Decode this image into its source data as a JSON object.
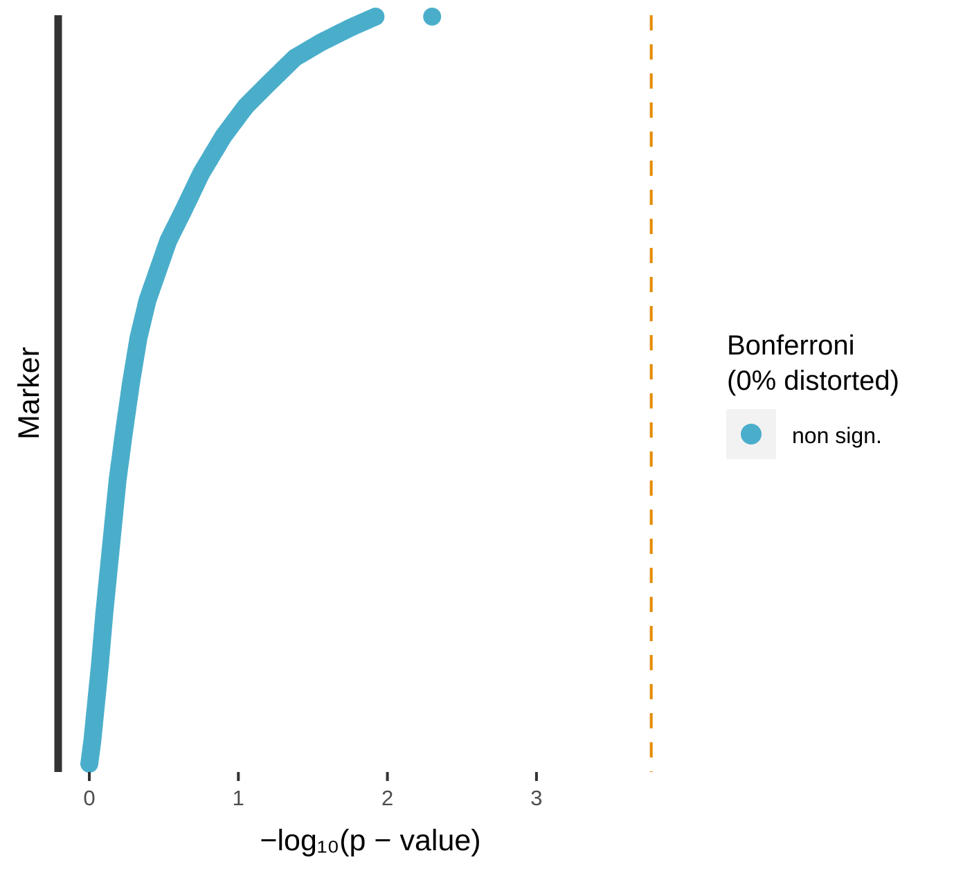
{
  "chart_data": {
    "type": "scatter",
    "orientation": "horizontal",
    "xlabel": "−log₁₀(p − value)",
    "ylabel": "Marker",
    "xlim": [
      -0.05,
      3.82
    ],
    "x_ticks": [
      "0",
      "1",
      "2",
      "3"
    ],
    "grid": false,
    "threshold": {
      "x": 3.77,
      "color": "#e68a00",
      "style": "dashed"
    },
    "legend": {
      "position": "right",
      "title_line1": "Bonferroni",
      "title_line2": "(0% distorted)",
      "items": [
        {
          "label": "non sign.",
          "color": "#4aaecb"
        }
      ]
    },
    "colors": {
      "point": "#4aaecb",
      "axis": "#333333",
      "threshold": "#e68a00"
    },
    "curve_points": [
      [
        0.0,
        0.0
      ],
      [
        0.02,
        0.03
      ],
      [
        0.04,
        0.07
      ],
      [
        0.07,
        0.13
      ],
      [
        0.1,
        0.2
      ],
      [
        0.13,
        0.26
      ],
      [
        0.16,
        0.32
      ],
      [
        0.19,
        0.38
      ],
      [
        0.23,
        0.44
      ],
      [
        0.28,
        0.51
      ],
      [
        0.33,
        0.57
      ],
      [
        0.39,
        0.62
      ],
      [
        0.46,
        0.66
      ],
      [
        0.53,
        0.7
      ],
      [
        0.63,
        0.74
      ],
      [
        0.75,
        0.79
      ],
      [
        0.9,
        0.84
      ],
      [
        1.05,
        0.88
      ],
      [
        1.2,
        0.91
      ],
      [
        1.38,
        0.945
      ],
      [
        1.55,
        0.965
      ],
      [
        1.75,
        0.985
      ],
      [
        1.92,
        1.0
      ]
    ],
    "outlier_points": [
      {
        "x": 2.3,
        "rank": 1.0
      }
    ]
  }
}
